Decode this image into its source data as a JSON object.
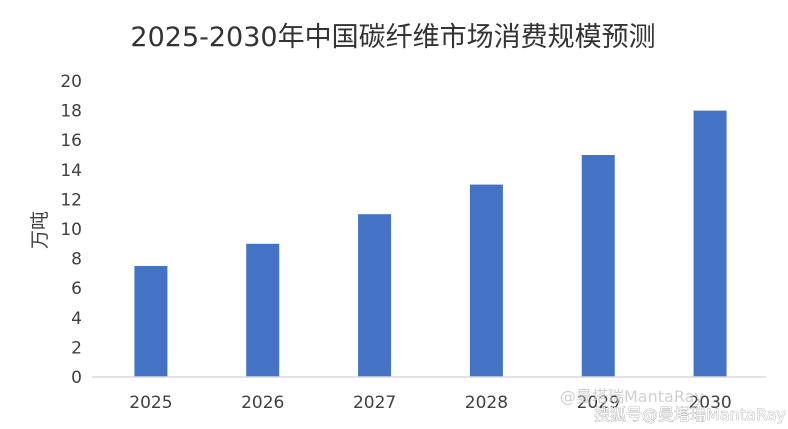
{
  "chart_data": {
    "type": "bar",
    "title": "2025-2030年中国碳纤维市场消费规模预测",
    "xlabel": "",
    "ylabel": "万吨",
    "categories": [
      "2025",
      "2026",
      "2027",
      "2028",
      "2029",
      "2030"
    ],
    "values": [
      7.5,
      9,
      11,
      13,
      15,
      18
    ],
    "ylim": [
      0,
      20
    ],
    "yticks": [
      0,
      2,
      4,
      6,
      8,
      10,
      12,
      14,
      16,
      18,
      20
    ],
    "grid": false,
    "legend": "none",
    "bar_color": "#4472C4"
  },
  "watermark": {
    "line1": "@曼塔瑞MantaRay",
    "line2": "搜狐号@曼塔瑞MantaRay"
  }
}
